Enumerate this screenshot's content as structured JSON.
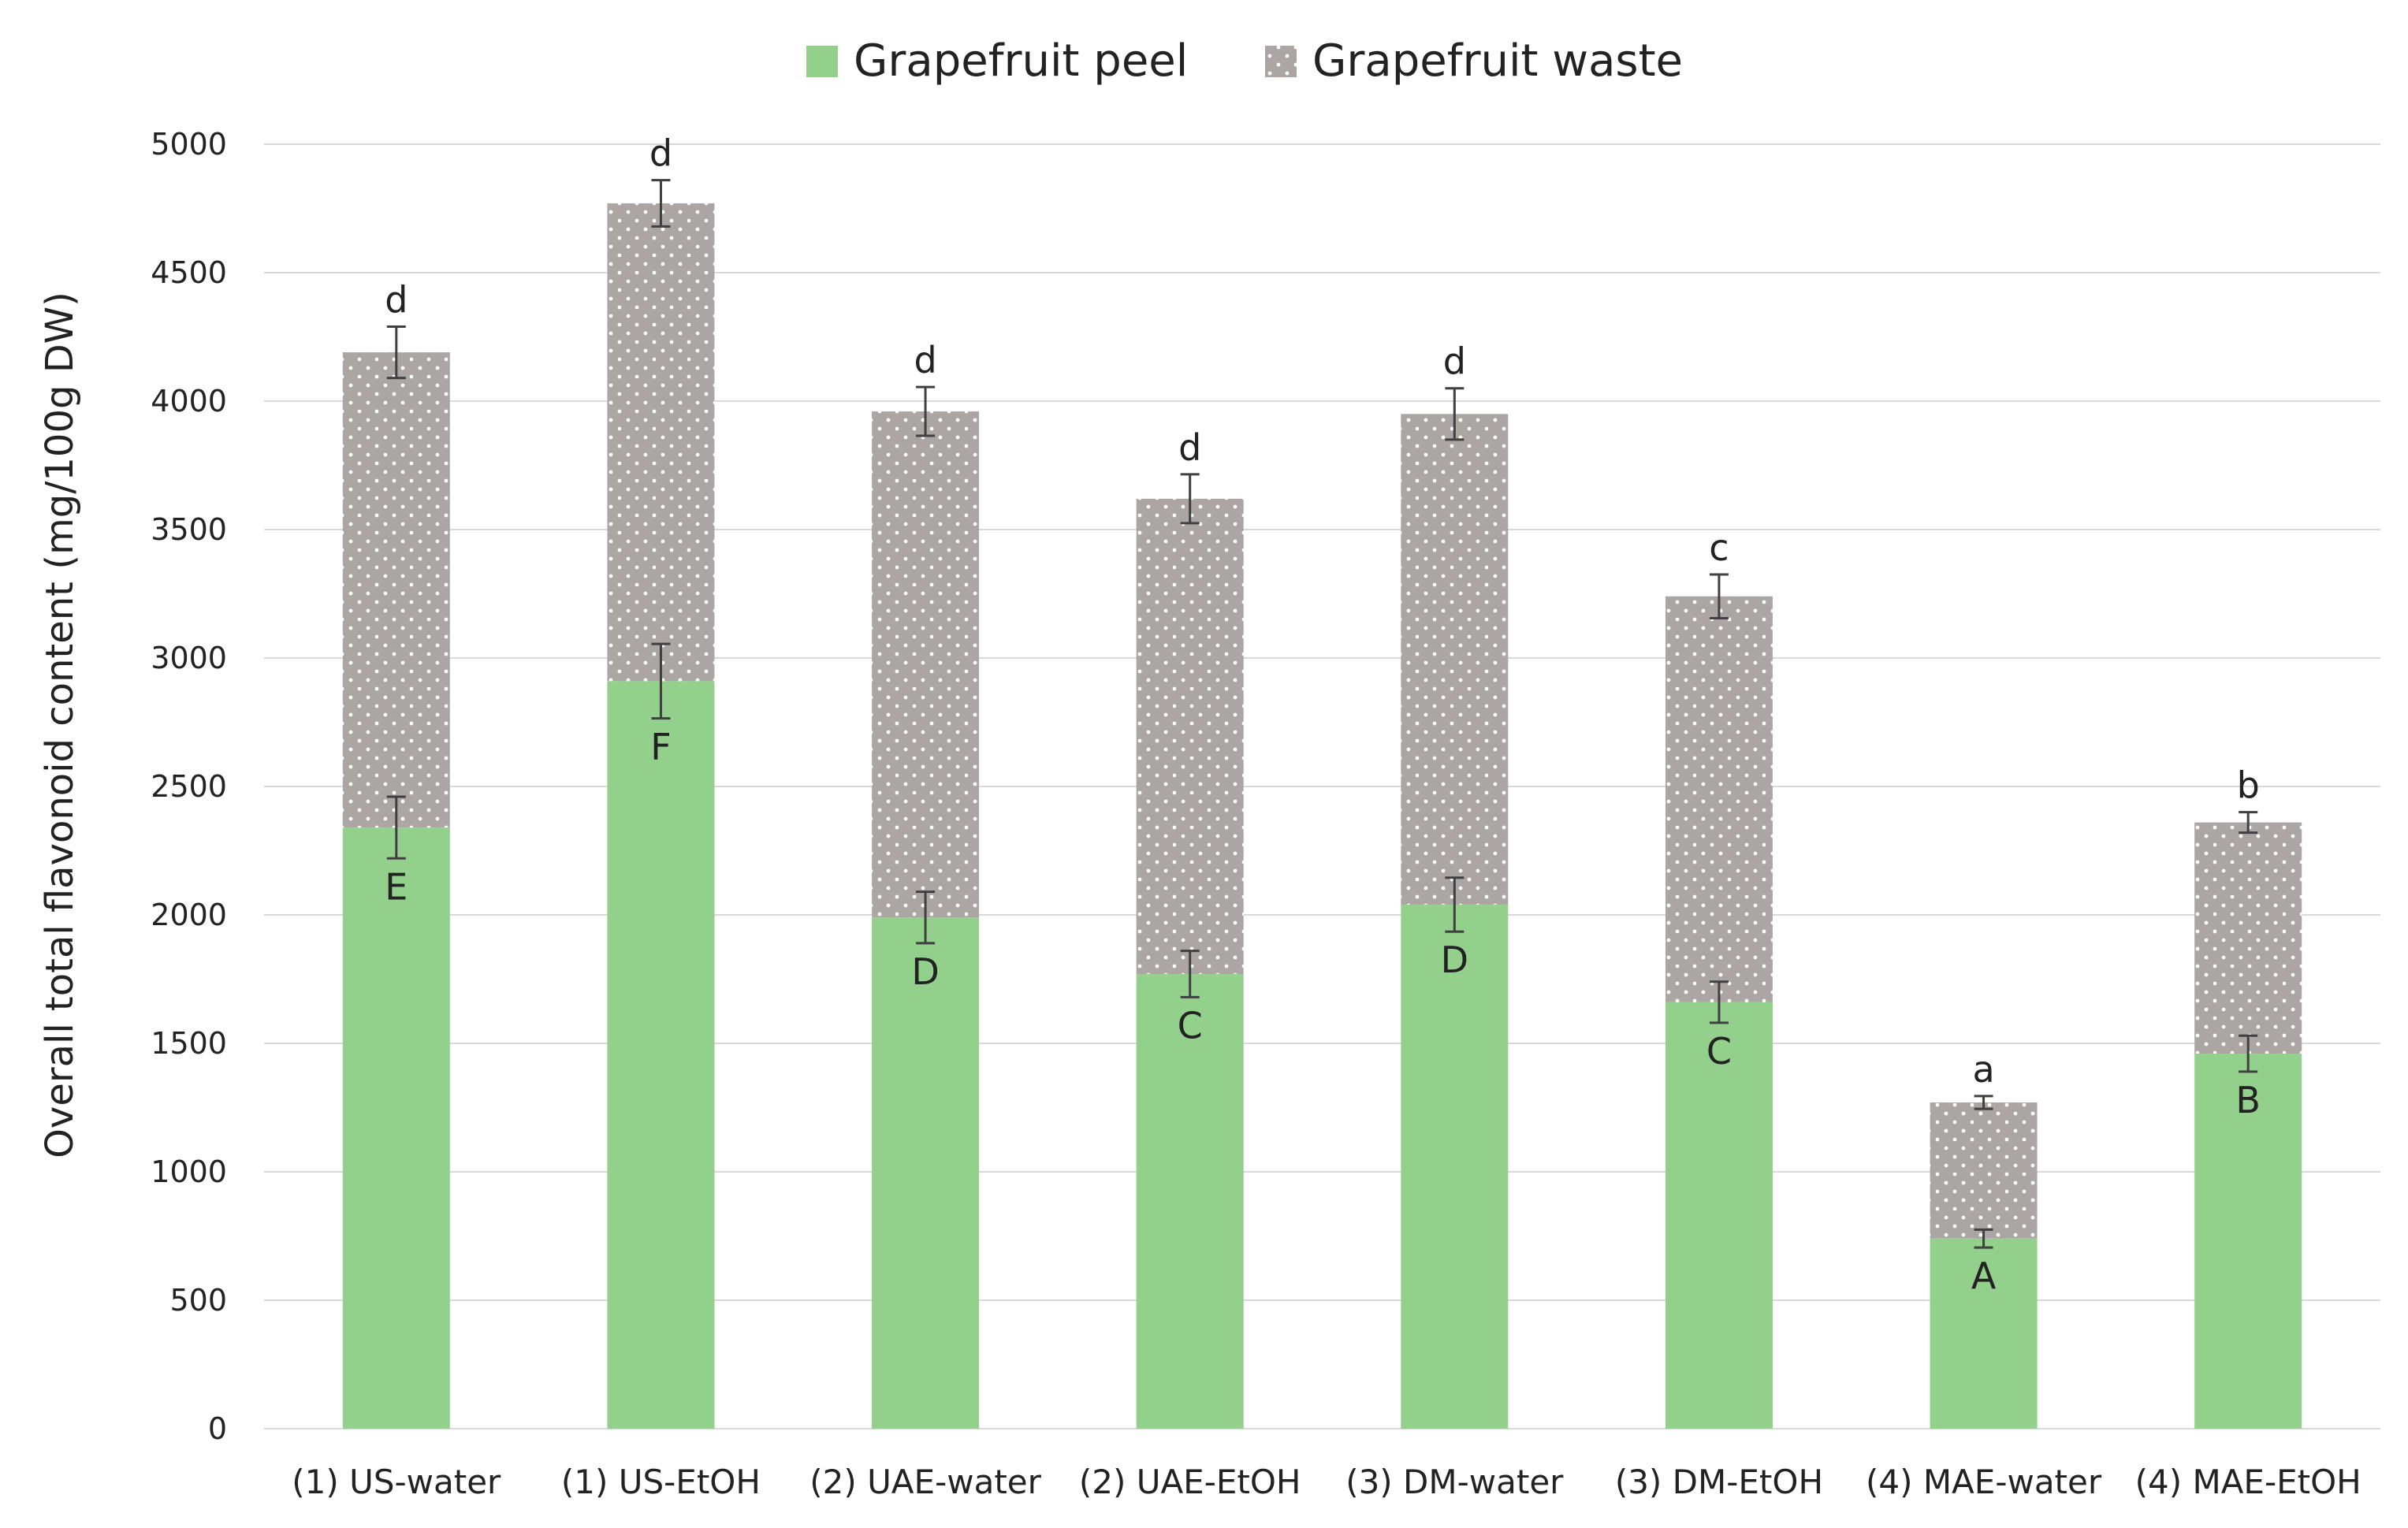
{
  "chart_data": {
    "type": "bar",
    "stacked": true,
    "title": "",
    "xlabel": "",
    "ylabel": "Overall total flavonoid content (mg/100g DW)",
    "ylim": [
      0,
      5000
    ],
    "ytick_step": 500,
    "grid": true,
    "legend_position": "top-center",
    "categories": [
      "(1) US-water",
      "(1) US-EtOH",
      "(2) UAE-water",
      "(2) UAE-EtOH",
      "(3) DM-water",
      "(3) DM-EtOH",
      "(4) MAE-water",
      "(4) MAE-EtOH"
    ],
    "series": [
      {
        "name": "Grapefruit peel",
        "color": "#92d08c",
        "pattern": "solid",
        "values": [
          2340,
          2910,
          1990,
          1770,
          2040,
          1660,
          740,
          1460
        ],
        "error": [
          120,
          145,
          100,
          90,
          105,
          80,
          35,
          70
        ],
        "labels": [
          "E",
          "F",
          "D",
          "C",
          "D",
          "C",
          "A",
          "B"
        ]
      },
      {
        "name": "Grapefruit waste",
        "color": "#aba6a4",
        "pattern": "dots",
        "values": [
          1850,
          1860,
          1970,
          1850,
          1910,
          1580,
          530,
          900
        ],
        "error": [
          100,
          90,
          95,
          95,
          100,
          85,
          25,
          40
        ],
        "labels": [
          "d",
          "d",
          "d",
          "d",
          "d",
          "c",
          "a",
          "b"
        ]
      }
    ]
  }
}
